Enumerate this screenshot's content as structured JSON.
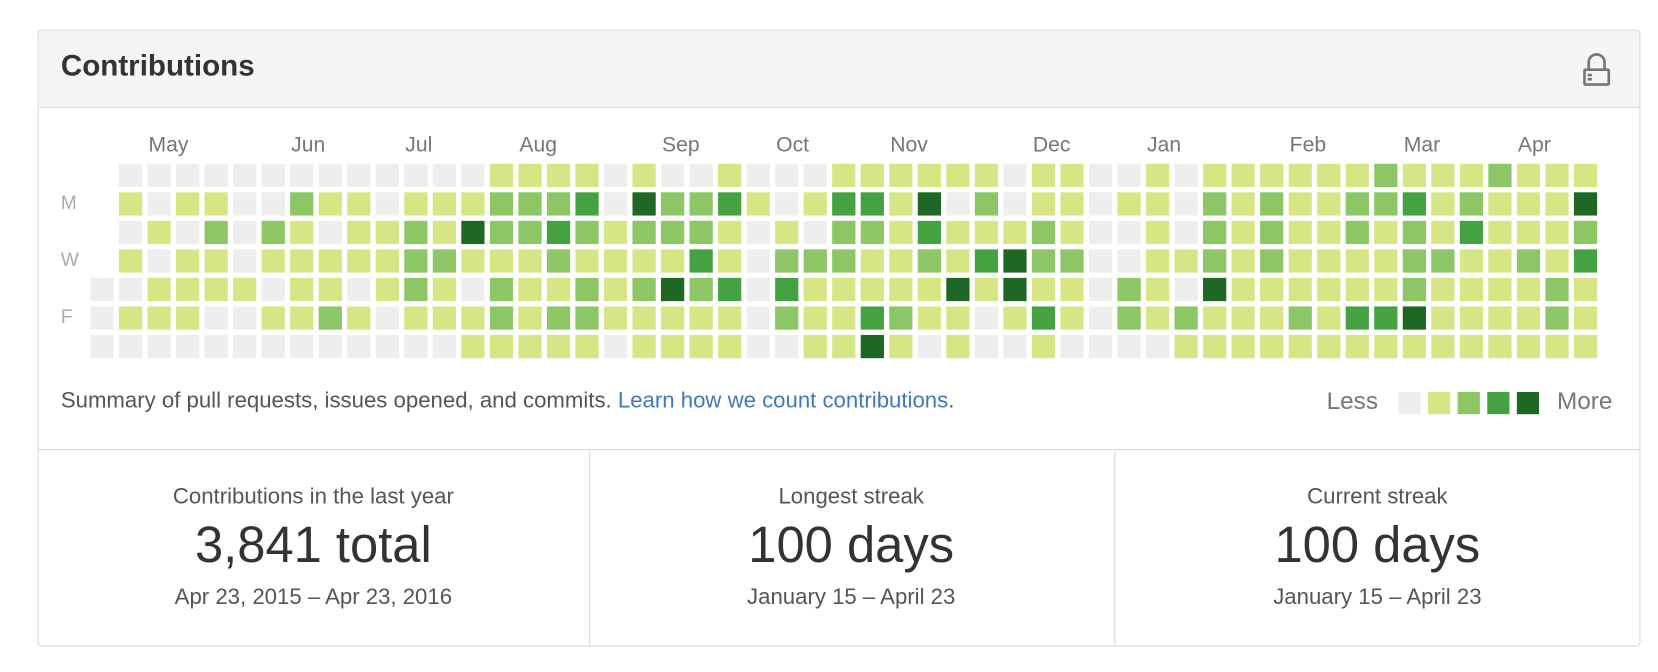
{
  "header": {
    "title": "Contributions"
  },
  "calendar": {
    "months": [
      "May",
      "Jun",
      "Jul",
      "Aug",
      "Sep",
      "Oct",
      "Nov",
      "Dec",
      "Jan",
      "Feb",
      "Mar",
      "Apr"
    ],
    "days": [
      "M",
      "W",
      "F"
    ],
    "rows": [
      [
        null,
        0,
        0,
        0,
        0,
        0,
        0,
        0,
        0,
        0,
        0,
        0,
        0,
        0,
        1,
        1,
        1,
        1,
        0,
        1,
        0,
        0,
        1,
        0,
        0,
        0,
        1,
        1,
        1,
        1,
        1,
        1,
        0,
        1,
        1,
        0,
        0,
        1,
        0,
        1,
        1,
        1,
        1,
        1,
        1,
        2,
        1,
        1,
        1,
        2,
        1,
        1,
        1
      ],
      [
        null,
        1,
        0,
        1,
        1,
        0,
        0,
        2,
        1,
        1,
        0,
        1,
        1,
        1,
        2,
        2,
        2,
        3,
        0,
        4,
        2,
        2,
        3,
        1,
        0,
        1,
        3,
        3,
        1,
        4,
        0,
        2,
        0,
        1,
        1,
        0,
        1,
        1,
        0,
        2,
        1,
        2,
        1,
        1,
        2,
        2,
        3,
        1,
        2,
        1,
        1,
        1,
        4
      ],
      [
        null,
        0,
        1,
        0,
        2,
        0,
        2,
        1,
        0,
        1,
        1,
        2,
        1,
        4,
        2,
        2,
        3,
        2,
        1,
        2,
        2,
        2,
        1,
        0,
        1,
        0,
        2,
        2,
        1,
        3,
        1,
        1,
        1,
        2,
        1,
        0,
        0,
        1,
        0,
        2,
        1,
        2,
        1,
        1,
        2,
        1,
        2,
        1,
        3,
        1,
        1,
        1,
        2
      ],
      [
        null,
        1,
        0,
        1,
        1,
        0,
        1,
        1,
        1,
        1,
        1,
        2,
        2,
        1,
        1,
        1,
        2,
        1,
        1,
        1,
        1,
        3,
        1,
        0,
        2,
        2,
        2,
        1,
        1,
        2,
        1,
        3,
        4,
        2,
        2,
        0,
        0,
        1,
        1,
        2,
        1,
        2,
        1,
        1,
        1,
        1,
        2,
        2,
        1,
        1,
        2,
        1,
        3
      ],
      [
        0,
        0,
        1,
        1,
        1,
        1,
        0,
        1,
        1,
        0,
        1,
        2,
        1,
        0,
        2,
        1,
        1,
        2,
        1,
        2,
        4,
        2,
        3,
        0,
        3,
        1,
        1,
        1,
        1,
        1,
        4,
        1,
        4,
        1,
        1,
        0,
        2,
        1,
        0,
        4,
        1,
        1,
        1,
        1,
        1,
        1,
        2,
        1,
        1,
        1,
        1,
        2,
        1
      ],
      [
        0,
        1,
        1,
        1,
        0,
        0,
        1,
        1,
        2,
        1,
        0,
        1,
        1,
        1,
        2,
        1,
        2,
        2,
        1,
        1,
        1,
        1,
        1,
        0,
        2,
        1,
        1,
        3,
        2,
        1,
        1,
        0,
        1,
        3,
        1,
        0,
        2,
        1,
        2,
        1,
        1,
        1,
        2,
        1,
        3,
        3,
        4,
        1,
        1,
        1,
        1,
        2,
        1
      ],
      [
        0,
        0,
        0,
        0,
        0,
        0,
        0,
        0,
        0,
        0,
        0,
        0,
        0,
        1,
        1,
        1,
        1,
        1,
        0,
        1,
        1,
        1,
        1,
        0,
        0,
        1,
        1,
        4,
        1,
        0,
        1,
        0,
        0,
        1,
        0,
        0,
        0,
        0,
        1,
        1,
        1,
        1,
        1,
        1,
        1,
        1,
        1,
        1,
        1,
        1,
        1,
        1,
        1
      ]
    ]
  },
  "summary": {
    "text": "Summary of pull requests, issues opened, and commits.",
    "link": "Learn how we count contributions",
    "end": "."
  },
  "legend": {
    "less": "Less",
    "more": "More",
    "colors": [
      "#eeeeee",
      "#d6e685",
      "#8cc665",
      "#44a340",
      "#1e6823"
    ]
  },
  "stats": [
    {
      "label": "Contributions in the last year",
      "value": "3,841 total",
      "range": "Apr 23, 2015 – Apr 23, 2016"
    },
    {
      "label": "Longest streak",
      "value": "100 days",
      "range": "January 15 – April 23"
    },
    {
      "label": "Current streak",
      "value": "100 days",
      "range": "January 15 – April 23"
    }
  ]
}
